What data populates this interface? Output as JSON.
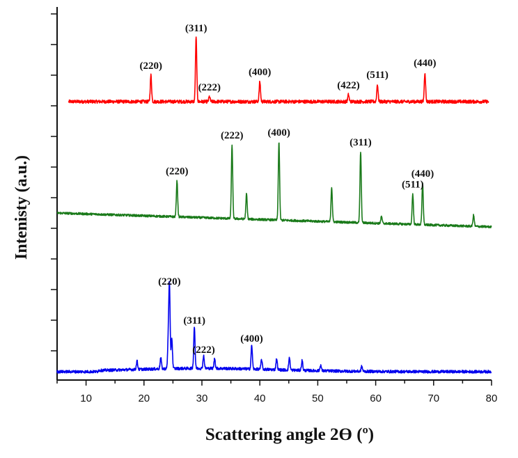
{
  "chart_data": {
    "type": "line",
    "title": "",
    "xlabel": "Scattering angle 2Ө (º)",
    "ylabel": "Intenisty (a.u.)",
    "xlim": [
      5,
      80
    ],
    "x_ticks": [
      "10",
      "20",
      "30",
      "40",
      "50",
      "60",
      "70",
      "80"
    ],
    "y_ticks_labeled": false,
    "grid": false,
    "legend": "none",
    "series": [
      {
        "color": "#ff0000",
        "baseline": 0.6,
        "noise": 0.06,
        "peaks": [
          {
            "x": 21.2,
            "h": 0.95,
            "label": "(220)"
          },
          {
            "x": 29.0,
            "h": 2.3,
            "label": "(311)"
          },
          {
            "x": 31.3,
            "h": 0.18,
            "label": "(222)"
          },
          {
            "x": 40.0,
            "h": 0.72,
            "label": "(400)"
          },
          {
            "x": 55.3,
            "h": 0.25,
            "label": "(422)"
          },
          {
            "x": 60.3,
            "h": 0.62,
            "label": "(511)"
          },
          {
            "x": 68.5,
            "h": 1.05,
            "label": "(440)"
          }
        ]
      },
      {
        "color": "#1a7a1a",
        "baseline": 0.6,
        "noise": 0.04,
        "peaks": [
          {
            "x": 25.7,
            "h": 1.3,
            "label": "(220)"
          },
          {
            "x": 35.2,
            "h": 2.65,
            "label": "(222)"
          },
          {
            "x": 37.7,
            "h": 0.9
          },
          {
            "x": 43.3,
            "h": 2.8,
            "label": "(400)"
          },
          {
            "x": 52.4,
            "h": 1.25
          },
          {
            "x": 57.4,
            "h": 2.55,
            "label": "(311)"
          },
          {
            "x": 61.0,
            "h": 0.25
          },
          {
            "x": 66.4,
            "h": 1.1,
            "label": "(511)"
          },
          {
            "x": 68.1,
            "h": 1.5,
            "label": "(440)"
          },
          {
            "x": 76.9,
            "h": 0.4
          }
        ]
      },
      {
        "color": "#0000ee",
        "baseline": 0.1,
        "noise": 0.05,
        "peaks": [
          {
            "x": 18.8,
            "h": 0.3
          },
          {
            "x": 22.9,
            "h": 0.4
          },
          {
            "x": 24.2,
            "h": 1.0
          },
          {
            "x": 24.4,
            "h": 2.9,
            "label": "(220)"
          },
          {
            "x": 24.8,
            "h": 1.1
          },
          {
            "x": 28.7,
            "h": 1.5,
            "label": "(311)"
          },
          {
            "x": 30.3,
            "h": 0.45,
            "label": "(222)"
          },
          {
            "x": 32.2,
            "h": 0.35
          },
          {
            "x": 38.6,
            "h": 0.85,
            "label": "(400)"
          },
          {
            "x": 40.3,
            "h": 0.35
          },
          {
            "x": 42.9,
            "h": 0.4
          },
          {
            "x": 45.1,
            "h": 0.45
          },
          {
            "x": 47.3,
            "h": 0.35
          },
          {
            "x": 50.5,
            "h": 0.2
          },
          {
            "x": 57.6,
            "h": 0.18
          }
        ]
      }
    ]
  }
}
